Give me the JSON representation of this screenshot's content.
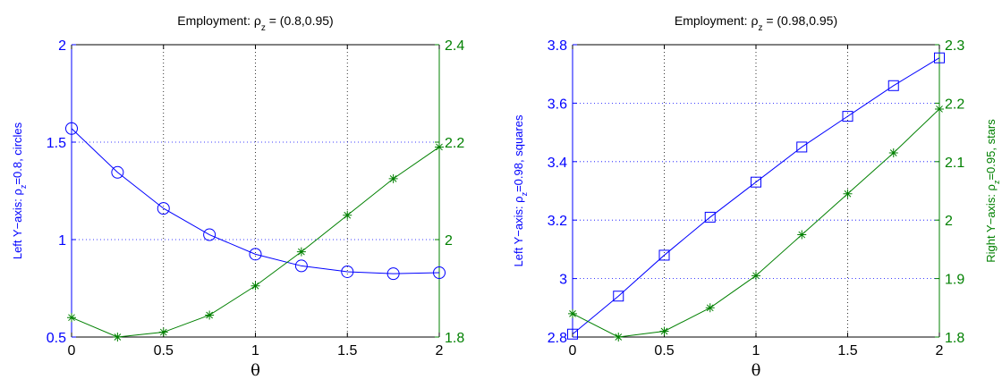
{
  "colors": {
    "left_series": "#0000ff",
    "right_series": "#008000",
    "axes": "#000000"
  },
  "chart_data": [
    {
      "type": "line",
      "title": {
        "main": "Employment: ",
        "rho": "ρ",
        "sub": "z",
        "rest": " = (0.8,0.95)"
      },
      "xlabel": "θ",
      "ylabel_left": {
        "pre": "Left Y−axis: ",
        "rho": "ρ",
        "sub": "z",
        "post": "=0.8, circles"
      },
      "ylabel_right": null,
      "x": [
        0,
        0.25,
        0.5,
        0.75,
        1.0,
        1.25,
        1.5,
        1.75,
        2.0
      ],
      "xlim": [
        0,
        2
      ],
      "x_ticks": [
        "0",
        "0.5",
        "1",
        "1.5",
        "2"
      ],
      "x_tick_values": [
        0,
        0.5,
        1,
        1.5,
        2
      ],
      "ylim_left": [
        0.5,
        2
      ],
      "y_left_ticks": [
        "0.5",
        "1",
        "1.5",
        "2"
      ],
      "y_left_tick_values": [
        0.5,
        1,
        1.5,
        2
      ],
      "ylim_right": [
        1.8,
        2.4
      ],
      "y_right_ticks": [
        "1.8",
        "2",
        "2.2",
        "2.4"
      ],
      "y_right_tick_values": [
        1.8,
        2.0,
        2.2,
        2.4
      ],
      "grid": true,
      "series": [
        {
          "axis": "left",
          "marker": "circle",
          "values": [
            1.57,
            1.345,
            1.16,
            1.025,
            0.925,
            0.865,
            0.835,
            0.825,
            0.83
          ]
        },
        {
          "axis": "right",
          "marker": "star",
          "values": [
            1.84,
            1.8,
            1.81,
            1.845,
            1.905,
            1.975,
            2.05,
            2.125,
            2.19
          ]
        }
      ]
    },
    {
      "type": "line",
      "title": {
        "main": "Employment: ",
        "rho": "ρ",
        "sub": "z",
        "rest": " = (0.98,0.95)"
      },
      "xlabel": "θ",
      "ylabel_left": {
        "pre": "Left Y−axis: ",
        "rho": "ρ",
        "sub": "z",
        "post": "=0.98, squares"
      },
      "ylabel_right": {
        "pre": "Right Y−axis: ",
        "rho": "ρ",
        "sub": "z",
        "post": "=0.95, stars"
      },
      "x": [
        0,
        0.25,
        0.5,
        0.75,
        1.0,
        1.25,
        1.5,
        1.75,
        2.0
      ],
      "xlim": [
        0,
        2
      ],
      "x_ticks": [
        "0",
        "0.5",
        "1",
        "1.5",
        "2"
      ],
      "x_tick_values": [
        0,
        0.5,
        1,
        1.5,
        2
      ],
      "ylim_left": [
        2.8,
        3.8
      ],
      "y_left_ticks": [
        "2.8",
        "3",
        "3.2",
        "3.4",
        "3.6",
        "3.8"
      ],
      "y_left_tick_values": [
        2.8,
        3.0,
        3.2,
        3.4,
        3.6,
        3.8
      ],
      "ylim_right": [
        1.8,
        2.3
      ],
      "y_right_ticks": [
        "1.8",
        "1.9",
        "2",
        "2.1",
        "2.2",
        "2.3"
      ],
      "y_right_tick_values": [
        1.8,
        1.9,
        2.0,
        2.1,
        2.2,
        2.3
      ],
      "grid": true,
      "series": [
        {
          "axis": "left",
          "marker": "square",
          "values": [
            2.81,
            2.94,
            3.08,
            3.21,
            3.33,
            3.45,
            3.555,
            3.66,
            3.755
          ]
        },
        {
          "axis": "right",
          "marker": "star",
          "values": [
            1.84,
            1.8,
            1.81,
            1.85,
            1.905,
            1.975,
            2.045,
            2.115,
            2.19
          ]
        }
      ]
    }
  ]
}
